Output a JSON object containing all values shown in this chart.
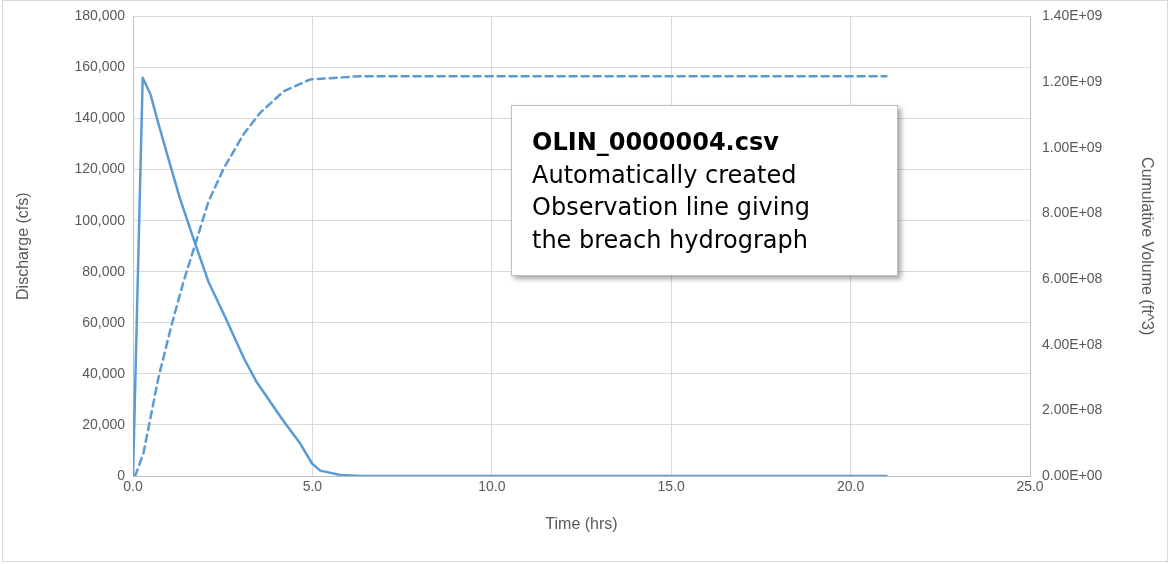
{
  "chart_data": {
    "type": "line",
    "xlabel": "Time (hrs)",
    "ylabel": "Discharge (cfs)",
    "y2label": "Cumulative Volume (ft^3)",
    "annotations": [
      "OLIN_0000004.csv",
      "Automatically created",
      "Observation line giving",
      "the breach hydrograph"
    ],
    "grid": true,
    "legend": false,
    "marker": "none",
    "xlim": [
      0,
      25
    ],
    "xticks": [
      {
        "value": 0,
        "label": "0.0"
      },
      {
        "value": 5,
        "label": "5.0"
      },
      {
        "value": 10,
        "label": "10.0"
      },
      {
        "value": 15,
        "label": "15.0"
      },
      {
        "value": 20,
        "label": "20.0"
      },
      {
        "value": 25,
        "label": "25.0"
      }
    ],
    "ylim": [
      0,
      180000
    ],
    "yticks": [
      {
        "value": 0,
        "label": "0"
      },
      {
        "value": 20000,
        "label": "20,000"
      },
      {
        "value": 40000,
        "label": "40,000"
      },
      {
        "value": 60000,
        "label": "60,000"
      },
      {
        "value": 80000,
        "label": "80,000"
      },
      {
        "value": 100000,
        "label": "100,000"
      },
      {
        "value": 120000,
        "label": "120,000"
      },
      {
        "value": 140000,
        "label": "140,000"
      },
      {
        "value": 160000,
        "label": "160,000"
      },
      {
        "value": 180000,
        "label": "180,000"
      }
    ],
    "y2lim": [
      0,
      1400000000
    ],
    "y2ticks": [
      {
        "value": 0,
        "label": "0.00E+00"
      },
      {
        "value": 200000000,
        "label": "2.00E+08"
      },
      {
        "value": 400000000,
        "label": "4.00E+08"
      },
      {
        "value": 600000000,
        "label": "6.00E+08"
      },
      {
        "value": 800000000,
        "label": "8.00E+08"
      },
      {
        "value": 1000000000,
        "label": "1.00E+09"
      },
      {
        "value": 1200000000,
        "label": "1.20E+09"
      },
      {
        "value": 1400000000,
        "label": "1.40E+09"
      }
    ],
    "series": [
      {
        "color": "#5b9bd5",
        "line_style": "solid",
        "x": [
          0,
          0.27,
          0.49,
          0.66,
          0.99,
          1.31,
          1.73,
          2.1,
          2.62,
          3.08,
          3.45,
          4.15,
          4.66,
          4.99,
          5.22,
          5.78,
          6.34,
          21.0
        ],
        "values": [
          0,
          156000,
          149400,
          140400,
          124100,
          108600,
          91100,
          76200,
          60700,
          46400,
          36700,
          22400,
          12700,
          4900,
          2100,
          400,
          0,
          0
        ]
      },
      {
        "color": "#5b9bd5",
        "line_style": "dashed",
        "axis": "y2",
        "x": [
          0.06,
          0.29,
          0.71,
          1.08,
          1.41,
          1.73,
          2.1,
          2.52,
          3.08,
          3.55,
          4.2,
          4.94,
          6.34,
          21.0
        ],
        "values": [
          0,
          69000000,
          300000000,
          462000000,
          593000000,
          704000000,
          835000000,
          935000000,
          1041000000,
          1107000000,
          1172000000,
          1208000000,
          1218000000,
          1218000000
        ]
      }
    ]
  }
}
